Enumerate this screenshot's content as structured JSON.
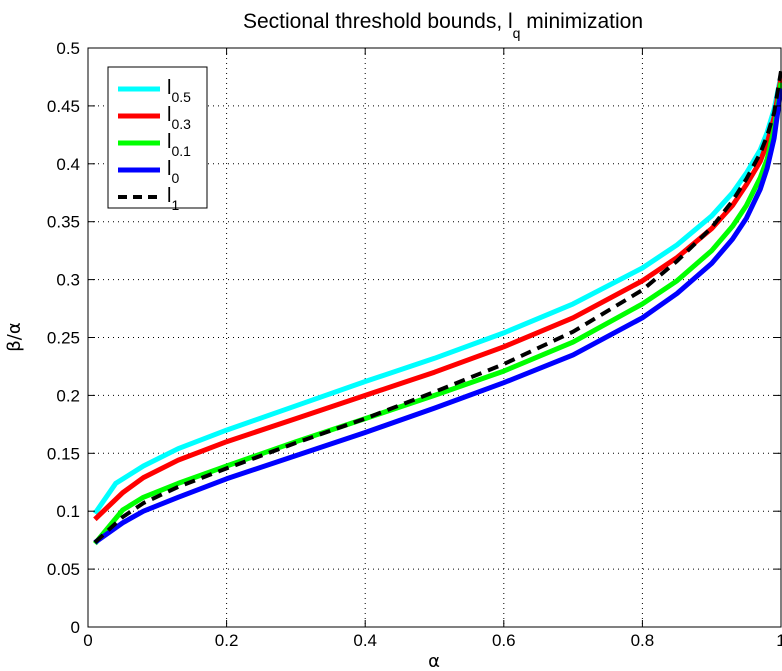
{
  "chart_data": {
    "type": "line",
    "title": {
      "main": "Sectional threshold bounds, l",
      "subscript": "q",
      "suffix": " minimization"
    },
    "xlabel": "α",
    "ylabel": "β/α",
    "xlim": [
      0,
      1
    ],
    "ylim": [
      0,
      0.5
    ],
    "xticks": [
      0,
      0.2,
      0.4,
      0.6,
      0.8,
      1
    ],
    "xtick_labels": [
      "0",
      "0.2",
      "0.4",
      "0.6",
      "0.8",
      "1"
    ],
    "yticks": [
      0,
      0.05,
      0.1,
      0.15,
      0.2,
      0.25,
      0.3,
      0.35,
      0.4,
      0.45,
      0.5
    ],
    "ytick_labels": [
      "0",
      "0.05",
      "0.1",
      "0.15",
      "0.2",
      "0.25",
      "0.3",
      "0.35",
      "0.4",
      "0.45",
      "0.5"
    ],
    "grid": true,
    "legend_position": "top-left",
    "series": [
      {
        "name": "l",
        "sub": "0.5",
        "color": "#00ffff",
        "dash": "solid",
        "x": [
          0.01,
          0.04,
          0.08,
          0.13,
          0.2,
          0.3,
          0.4,
          0.5,
          0.6,
          0.7,
          0.8,
          0.85,
          0.9,
          0.93,
          0.95,
          0.97,
          0.98,
          0.99,
          1.0
        ],
        "y": [
          0.098,
          0.124,
          0.139,
          0.154,
          0.17,
          0.191,
          0.212,
          0.232,
          0.254,
          0.279,
          0.31,
          0.33,
          0.355,
          0.375,
          0.392,
          0.412,
          0.427,
          0.447,
          0.476
        ]
      },
      {
        "name": "l",
        "sub": "0.3",
        "color": "#ff0000",
        "dash": "solid",
        "x": [
          0.01,
          0.05,
          0.08,
          0.13,
          0.2,
          0.3,
          0.4,
          0.5,
          0.6,
          0.7,
          0.8,
          0.85,
          0.9,
          0.93,
          0.95,
          0.97,
          0.98,
          0.99,
          1.0
        ],
        "y": [
          0.093,
          0.116,
          0.129,
          0.144,
          0.16,
          0.18,
          0.2,
          0.22,
          0.242,
          0.267,
          0.299,
          0.319,
          0.344,
          0.364,
          0.382,
          0.402,
          0.418,
          0.44,
          0.474
        ]
      },
      {
        "name": "l",
        "sub": "0.1",
        "color": "#00ff00",
        "dash": "solid",
        "x": [
          0.01,
          0.05,
          0.08,
          0.13,
          0.2,
          0.3,
          0.4,
          0.5,
          0.6,
          0.7,
          0.8,
          0.85,
          0.9,
          0.93,
          0.95,
          0.97,
          0.98,
          0.99,
          1.0
        ],
        "y": [
          0.072,
          0.101,
          0.112,
          0.124,
          0.139,
          0.16,
          0.18,
          0.2,
          0.221,
          0.246,
          0.279,
          0.299,
          0.325,
          0.346,
          0.364,
          0.388,
          0.404,
          0.43,
          0.47
        ]
      },
      {
        "name": "l",
        "sub": "0",
        "color": "#0000ff",
        "dash": "solid",
        "x": [
          0.01,
          0.05,
          0.08,
          0.13,
          0.2,
          0.3,
          0.4,
          0.5,
          0.6,
          0.7,
          0.8,
          0.85,
          0.9,
          0.93,
          0.95,
          0.97,
          0.98,
          0.99,
          1.0
        ],
        "y": [
          0.073,
          0.09,
          0.1,
          0.112,
          0.128,
          0.148,
          0.168,
          0.189,
          0.211,
          0.235,
          0.267,
          0.288,
          0.314,
          0.335,
          0.353,
          0.378,
          0.396,
          0.422,
          0.465
        ]
      },
      {
        "name": "l",
        "sub": "1",
        "color": "#000000",
        "dash": "dashed",
        "x": [
          0.01,
          0.05,
          0.08,
          0.13,
          0.2,
          0.3,
          0.4,
          0.5,
          0.6,
          0.7,
          0.8,
          0.85,
          0.9,
          0.93,
          0.95,
          0.97,
          0.98,
          0.99,
          1.0
        ],
        "y": [
          0.073,
          0.095,
          0.107,
          0.121,
          0.137,
          0.159,
          0.18,
          0.203,
          0.227,
          0.255,
          0.291,
          0.316,
          0.345,
          0.368,
          0.387,
          0.409,
          0.424,
          0.444,
          0.48
        ]
      }
    ]
  }
}
